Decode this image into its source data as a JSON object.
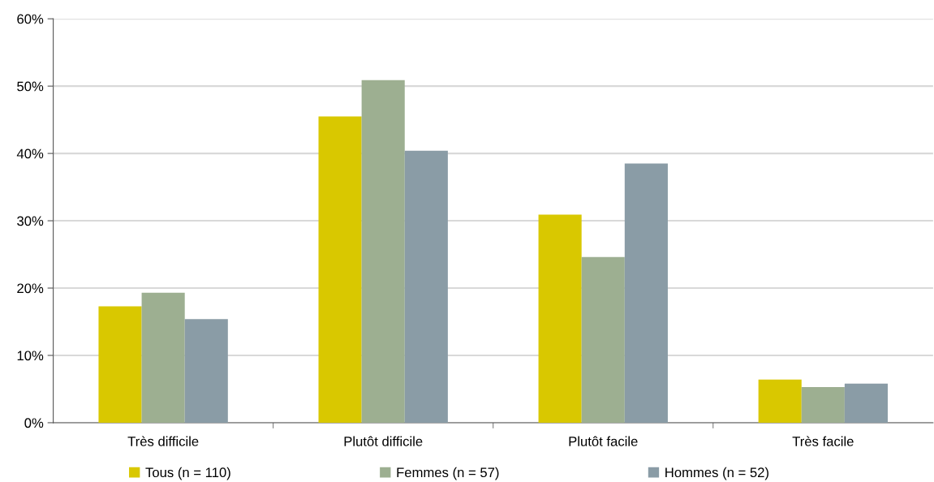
{
  "chart_data": {
    "type": "bar",
    "categories": [
      "Très difficile",
      "Plutôt difficile",
      "Plutôt facile",
      "Très facile"
    ],
    "series": [
      {
        "name": "Tous (n = 110)",
        "color": "#d9c800",
        "values": [
          17.3,
          45.5,
          30.9,
          6.4
        ]
      },
      {
        "name": "Femmes (n = 57)",
        "color": "#9daf91",
        "values": [
          19.3,
          50.9,
          24.6,
          5.3
        ]
      },
      {
        "name": "Hommes (n = 52)",
        "color": "#8a9ca6",
        "values": [
          15.4,
          40.4,
          38.5,
          5.8
        ]
      }
    ],
    "ylim": [
      0,
      60
    ],
    "yticks": [
      {
        "value": 0,
        "label": "0%"
      },
      {
        "value": 10,
        "label": "10%"
      },
      {
        "value": 20,
        "label": "20%"
      },
      {
        "value": 30,
        "label": "30%"
      },
      {
        "value": 40,
        "label": "40%"
      },
      {
        "value": 50,
        "label": "50%"
      },
      {
        "value": 60,
        "label": "60%"
      }
    ],
    "grid": "y",
    "legend": "bottom"
  }
}
